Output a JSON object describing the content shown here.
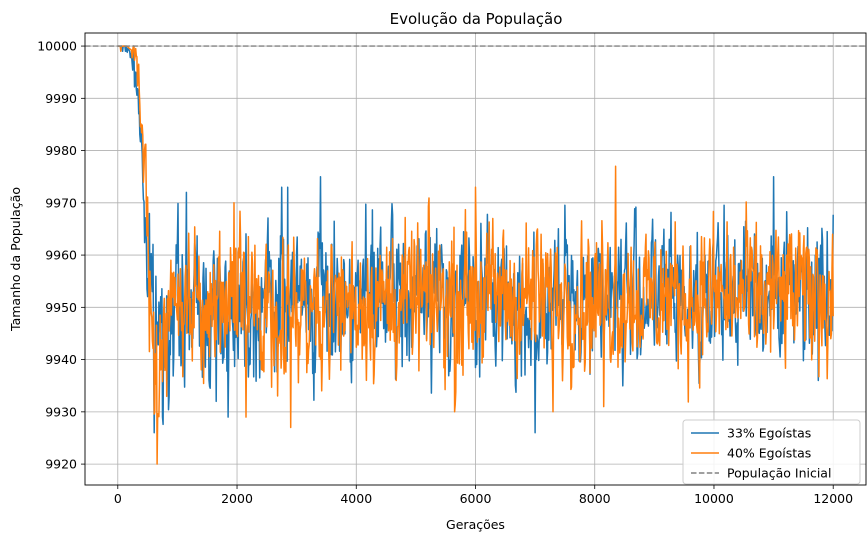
{
  "chart_data": {
    "type": "line",
    "title": "Evolução da População",
    "xlabel": "Gerações",
    "ylabel": "Tamanho da População",
    "xlim": [
      -550,
      12550
    ],
    "ylim": [
      9916,
      10002.5
    ],
    "xticks": [
      0,
      2000,
      4000,
      6000,
      8000,
      10000,
      12000
    ],
    "yticks": [
      9920,
      9930,
      9940,
      9950,
      9960,
      9970,
      9980,
      9990,
      10000
    ],
    "grid": true,
    "legend_position": "lower-right",
    "series": [
      {
        "name": "33% Egoístas",
        "color": "#1f77b4",
        "seed": 7,
        "x": [
          0,
          150,
          250,
          300,
          350,
          400,
          430,
          460,
          500,
          540,
          580,
          620,
          700,
          800,
          1000,
          2000,
          4000,
          6000,
          7000,
          8000,
          10000,
          11000,
          12000
        ],
        "y": [
          10000,
          10000,
          9998,
          9993,
          9989,
          9980,
          9972,
          9965,
          9958,
          9952,
          9948,
          9945,
          9946,
          9948,
          9950,
          9951,
          9952,
          9952,
          9950,
          9953,
          9952,
          9953,
          9955
        ],
        "amp": 9,
        "spikes": [
          [
            3400,
            9975
          ],
          [
            11000,
            9975
          ],
          [
            1150,
            9972
          ],
          [
            2750,
            9973
          ],
          [
            2850,
            9973
          ],
          [
            610,
            9926
          ],
          [
            7000,
            9926
          ],
          [
            1650,
            9932
          ],
          [
            750,
            9929
          ],
          [
            1850,
            9929
          ],
          [
            11750,
            9936
          ]
        ]
      },
      {
        "name": "40% Egoístas",
        "color": "#ff7f0e",
        "seed": 19,
        "x": [
          0,
          150,
          250,
          300,
          350,
          400,
          430,
          460,
          500,
          540,
          580,
          620,
          680,
          750,
          1000,
          2000,
          4000,
          6000,
          8000,
          10000,
          12000
        ],
        "y": [
          10000,
          10000,
          9999,
          9997,
          9994,
          9985,
          9978,
          9970,
          9962,
          9955,
          9948,
          9942,
          9940,
          9943,
          9950,
          9950,
          9951,
          9952,
          9952,
          9952,
          9953
        ],
        "amp": 9,
        "spikes": [
          [
            8350,
            9977
          ],
          [
            6000,
            9973
          ],
          [
            1950,
            9970
          ],
          [
            2900,
            9927
          ],
          [
            660,
            9920
          ],
          [
            2150,
            9929
          ],
          [
            5650,
            9930
          ],
          [
            7300,
            9930
          ],
          [
            8150,
            9931
          ]
        ]
      },
      {
        "name": "População Inicial",
        "color": "#808080",
        "dashed": true,
        "x": [
          -550,
          12550
        ],
        "y": [
          10000,
          10000
        ]
      }
    ]
  }
}
